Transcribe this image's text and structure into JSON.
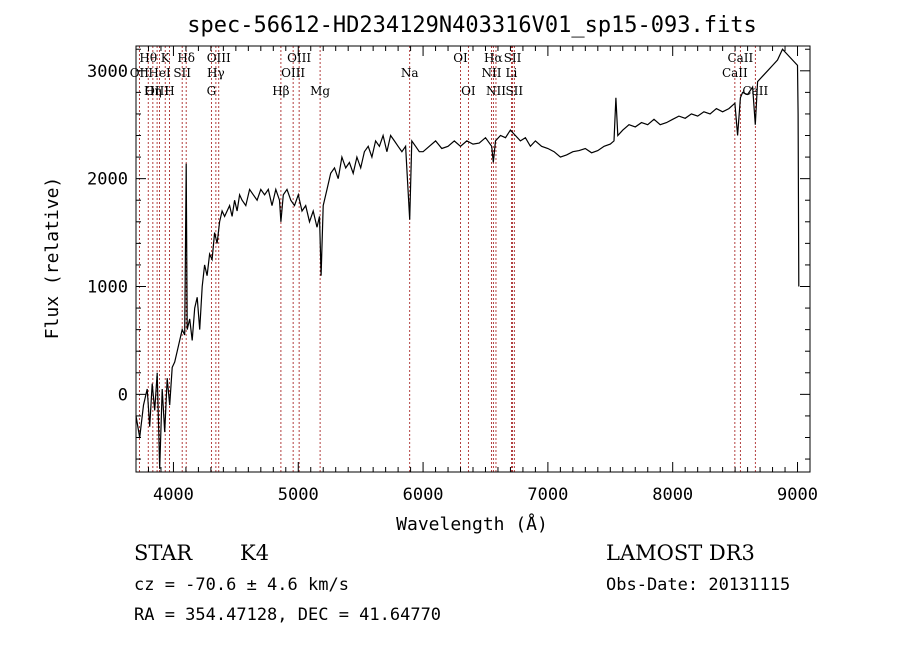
{
  "chart_data": {
    "type": "line",
    "title": "spec-56612-HD234129N403316V01_sp15-093.fits",
    "xlabel": "Wavelength (Å)",
    "ylabel": "Flux (relative)",
    "xlim": [
      3700,
      9100
    ],
    "ylim": [
      -720,
      3230
    ],
    "x_ticks": [
      4000,
      5000,
      6000,
      7000,
      8000,
      9000
    ],
    "y_ticks": [
      0,
      1000,
      2000,
      3000
    ],
    "grid": false,
    "series": [
      {
        "x": [
          3700,
          3730,
          3760,
          3790,
          3810,
          3830,
          3850,
          3870,
          3890,
          3910,
          3930,
          3950,
          3970,
          3990,
          4010,
          4030,
          4050,
          4070,
          4090,
          4102,
          4110,
          4130,
          4150,
          4170,
          4190,
          4210,
          4230,
          4250,
          4270,
          4290,
          4310,
          4330,
          4350,
          4370,
          4390,
          4410,
          4430,
          4450,
          4470,
          4490,
          4510,
          4530,
          4550,
          4580,
          4610,
          4640,
          4670,
          4700,
          4730,
          4760,
          4790,
          4820,
          4850,
          4861,
          4880,
          4910,
          4940,
          4970,
          5000,
          5030,
          5060,
          5090,
          5120,
          5150,
          5170,
          5183,
          5200,
          5230,
          5260,
          5290,
          5320,
          5350,
          5380,
          5410,
          5440,
          5470,
          5500,
          5530,
          5560,
          5590,
          5620,
          5650,
          5680,
          5710,
          5740,
          5770,
          5800,
          5830,
          5860,
          5893,
          5910,
          5940,
          5970,
          6000,
          6050,
          6100,
          6150,
          6200,
          6250,
          6300,
          6350,
          6400,
          6450,
          6500,
          6550,
          6563,
          6580,
          6620,
          6660,
          6700,
          6740,
          6780,
          6820,
          6860,
          6900,
          6950,
          7000,
          7050,
          7100,
          7150,
          7200,
          7250,
          7300,
          7350,
          7400,
          7450,
          7500,
          7530,
          7545,
          7560,
          7600,
          7650,
          7700,
          7750,
          7800,
          7850,
          7900,
          7950,
          8000,
          8050,
          8100,
          8150,
          8200,
          8250,
          8300,
          8350,
          8400,
          8450,
          8498,
          8520,
          8542,
          8560,
          8600,
          8640,
          8662,
          8680,
          8720,
          8760,
          8800,
          8840,
          8880,
          8920,
          8960,
          9000,
          9005,
          9010
        ],
        "y": [
          -200,
          -400,
          -100,
          50,
          -300,
          100,
          -150,
          200,
          -690,
          50,
          -350,
          150,
          -100,
          250,
          300,
          400,
          500,
          600,
          550,
          2140,
          600,
          700,
          500,
          800,
          900,
          600,
          1000,
          1200,
          1100,
          1300,
          1250,
          1500,
          1400,
          1600,
          1700,
          1650,
          1700,
          1750,
          1650,
          1800,
          1700,
          1850,
          1800,
          1750,
          1900,
          1850,
          1800,
          1900,
          1850,
          1900,
          1750,
          1900,
          1800,
          1600,
          1850,
          1900,
          1800,
          1750,
          1850,
          1700,
          1750,
          1600,
          1700,
          1550,
          1650,
          1100,
          1750,
          1900,
          2050,
          2100,
          2000,
          2200,
          2100,
          2150,
          2050,
          2200,
          2100,
          2250,
          2300,
          2200,
          2350,
          2300,
          2400,
          2250,
          2400,
          2350,
          2300,
          2250,
          2300,
          1620,
          2350,
          2300,
          2250,
          2250,
          2300,
          2350,
          2280,
          2300,
          2350,
          2300,
          2350,
          2320,
          2330,
          2380,
          2300,
          2150,
          2350,
          2400,
          2380,
          2450,
          2400,
          2350,
          2380,
          2300,
          2350,
          2300,
          2280,
          2250,
          2200,
          2220,
          2250,
          2260,
          2280,
          2240,
          2260,
          2300,
          2320,
          2350,
          2750,
          2400,
          2450,
          2500,
          2480,
          2520,
          2500,
          2550,
          2500,
          2520,
          2550,
          2580,
          2560,
          2600,
          2580,
          2620,
          2600,
          2650,
          2620,
          2650,
          2700,
          2400,
          2750,
          2800,
          2780,
          2850,
          2500,
          2900,
          2950,
          3000,
          3050,
          3100,
          3200,
          3150,
          3100,
          3050,
          2600,
          1000
        ],
        "color": "#000000"
      }
    ],
    "spectral_lines": [
      {
        "label": "Hθ",
        "wavelength": 3798,
        "row": 0
      },
      {
        "label": "OII",
        "wavelength": 3727,
        "row": 1
      },
      {
        "label": "OIII",
        "wavelength": 3869,
        "row": 2
      },
      {
        "label": "K",
        "wavelength": 3934,
        "row": 0
      },
      {
        "label": "HeI",
        "wavelength": 3889,
        "row": 1
      },
      {
        "label": "Hη",
        "wavelength": 3835,
        "row": 2
      },
      {
        "label": "H",
        "wavelength": 3968,
        "row": 2
      },
      {
        "label": "SII",
        "wavelength": 4070,
        "row": 1
      },
      {
        "label": "Hδ",
        "wavelength": 4102,
        "row": 0
      },
      {
        "label": "OIII",
        "wavelength": 4363,
        "row": 0
      },
      {
        "label": "Hγ",
        "wavelength": 4340,
        "row": 1
      },
      {
        "label": "G",
        "wavelength": 4304,
        "row": 2
      },
      {
        "label": "Hβ",
        "wavelength": 4861,
        "row": 2
      },
      {
        "label": "OIII",
        "wavelength": 5007,
        "row": 0
      },
      {
        "label": "OIII",
        "wavelength": 4959,
        "row": 1
      },
      {
        "label": "Mg",
        "wavelength": 5175,
        "row": 2
      },
      {
        "label": "Na",
        "wavelength": 5893,
        "row": 1
      },
      {
        "label": "OI",
        "wavelength": 6300,
        "row": 0
      },
      {
        "label": "OI",
        "wavelength": 6363,
        "row": 2
      },
      {
        "label": "Hα",
        "wavelength": 6563,
        "row": 0
      },
      {
        "label": "NII",
        "wavelength": 6548,
        "row": 1
      },
      {
        "label": "NII",
        "wavelength": 6584,
        "row": 2
      },
      {
        "label": "SII",
        "wavelength": 6717,
        "row": 0
      },
      {
        "label": "Li",
        "wavelength": 6708,
        "row": 1
      },
      {
        "label": "SII",
        "wavelength": 6731,
        "row": 2
      },
      {
        "label": "CaII",
        "wavelength": 8542,
        "row": 0
      },
      {
        "label": "CaII",
        "wavelength": 8498,
        "row": 1
      },
      {
        "label": "CaII",
        "wavelength": 8662,
        "row": 2
      }
    ]
  },
  "info": {
    "class": "STAR",
    "subclass": "K4",
    "survey": "LAMOST DR3",
    "cz": "cz = -70.6 ± 4.6 km/s",
    "obs_date": "Obs-Date: 20131115",
    "coords": "RA = 354.47128, DEC =  41.64770"
  },
  "colors": {
    "line_marker": "#a01010",
    "spectrum": "#000000"
  }
}
